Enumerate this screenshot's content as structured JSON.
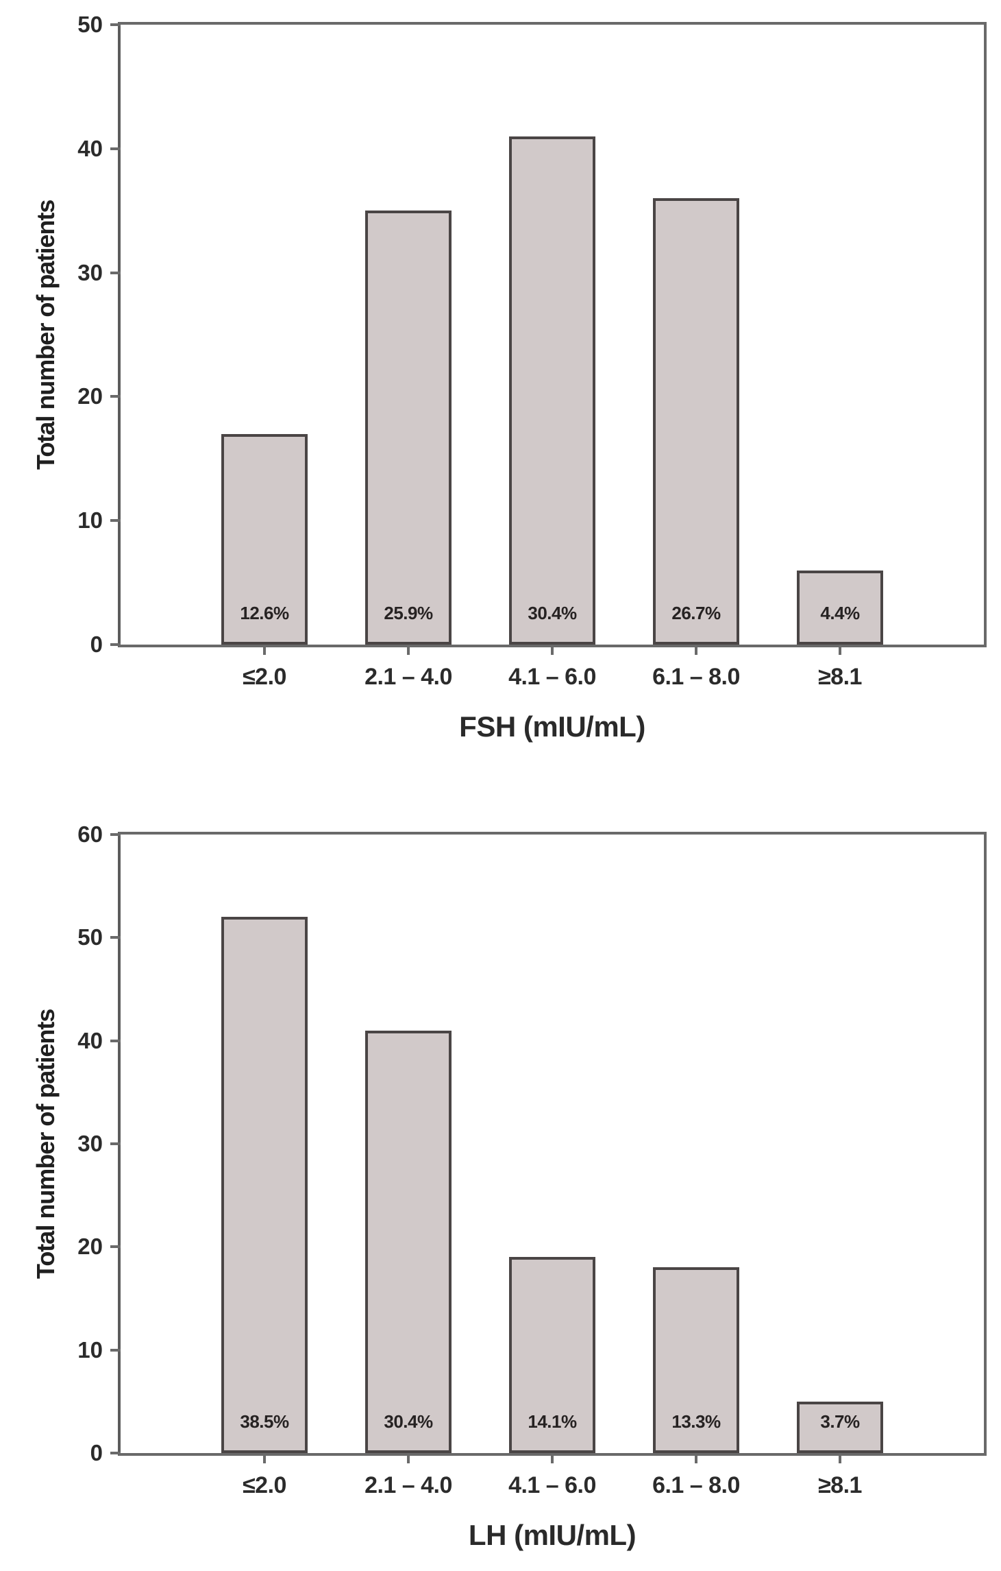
{
  "page": {
    "background": "#ffffff"
  },
  "chart_data": [
    {
      "type": "bar",
      "title": "",
      "xlabel": "FSH (mIU/mL)",
      "ylabel": "Total number of patients",
      "categories": [
        "≤2.0",
        "2.1 – 4.0",
        "4.1 – 6.0",
        "6.1 – 8.0",
        "≥8.1"
      ],
      "values": [
        17,
        35,
        41,
        36,
        6
      ],
      "bar_labels": [
        "12.6%",
        "25.9%",
        "30.4%",
        "26.7%",
        "4.4%"
      ],
      "ylim": [
        0,
        50
      ],
      "yticks": [
        0,
        10,
        20,
        30,
        40,
        50
      ],
      "grid": false,
      "legend": "none",
      "bar_color": "#d1c9c9",
      "bar_border_color": "#4a4545",
      "axis_color": "#696969"
    },
    {
      "type": "bar",
      "title": "",
      "xlabel": "LH (mIU/mL)",
      "ylabel": "Total number of patients",
      "categories": [
        "≤2.0",
        "2.1 – 4.0",
        "4.1 – 6.0",
        "6.1 – 8.0",
        "≥8.1"
      ],
      "values": [
        52,
        41,
        19,
        18,
        5
      ],
      "bar_labels": [
        "38.5%",
        "30.4%",
        "14.1%",
        "13.3%",
        "3.7%"
      ],
      "ylim": [
        0,
        60
      ],
      "yticks": [
        0,
        10,
        20,
        30,
        40,
        50,
        60
      ],
      "grid": false,
      "legend": "none",
      "bar_color": "#d1c9c9",
      "bar_border_color": "#4a4545",
      "axis_color": "#696969"
    }
  ]
}
